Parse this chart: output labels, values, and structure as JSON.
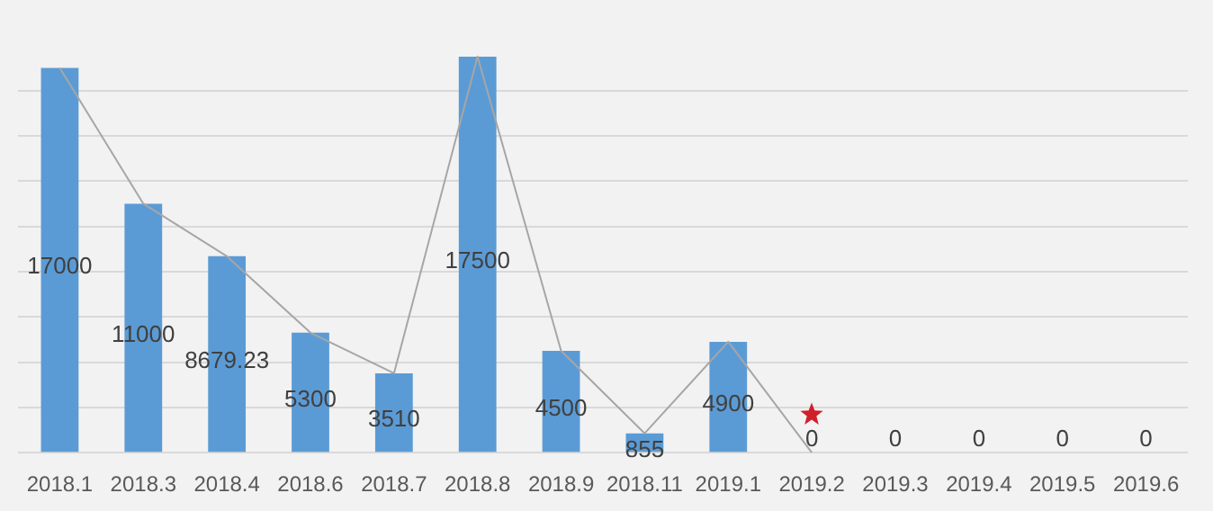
{
  "chart_data": {
    "type": "bar",
    "categories": [
      "2018.1",
      "2018.3",
      "2018.4",
      "2018.6",
      "2018.7",
      "2018.8",
      "2018.9",
      "2018.11",
      "2019.1",
      "2019.2",
      "2019.3",
      "2019.4",
      "2019.5",
      "2019.6"
    ],
    "series": [
      {
        "color": "#5b9bd5",
        "values": [
          17000,
          11000,
          8679.23,
          5300,
          3510,
          17500,
          4500,
          855,
          4900,
          0,
          0,
          0,
          0,
          0
        ],
        "value_labels": [
          "17000",
          "11000",
          "8679.23",
          "5300",
          "3510",
          "17500",
          "4500",
          "855",
          "4900",
          "0",
          "0",
          "0",
          "0",
          "0"
        ]
      },
      {
        "type": "line",
        "color": "#a6a6a6",
        "values": [
          17000,
          11000,
          8679.23,
          5300,
          3510,
          17500,
          4500,
          855,
          4900,
          0,
          null,
          null,
          null,
          null
        ]
      }
    ],
    "ylim": [
      0,
      20000
    ],
    "yticks": [
      {
        "value": 0,
        "label": null
      },
      {
        "value": 2000,
        "label": null
      },
      {
        "value": 4000,
        "label": null
      },
      {
        "value": 6000,
        "label": null
      },
      {
        "value": 8000,
        "label": null
      },
      {
        "value": 10000,
        "label": null
      },
      {
        "value": 12000,
        "label": null
      },
      {
        "value": 14000,
        "label": null
      },
      {
        "value": 16000,
        "label": null
      }
    ],
    "grid": "y",
    "tick_labels": "x",
    "legend": false,
    "marker": "none"
  }
}
